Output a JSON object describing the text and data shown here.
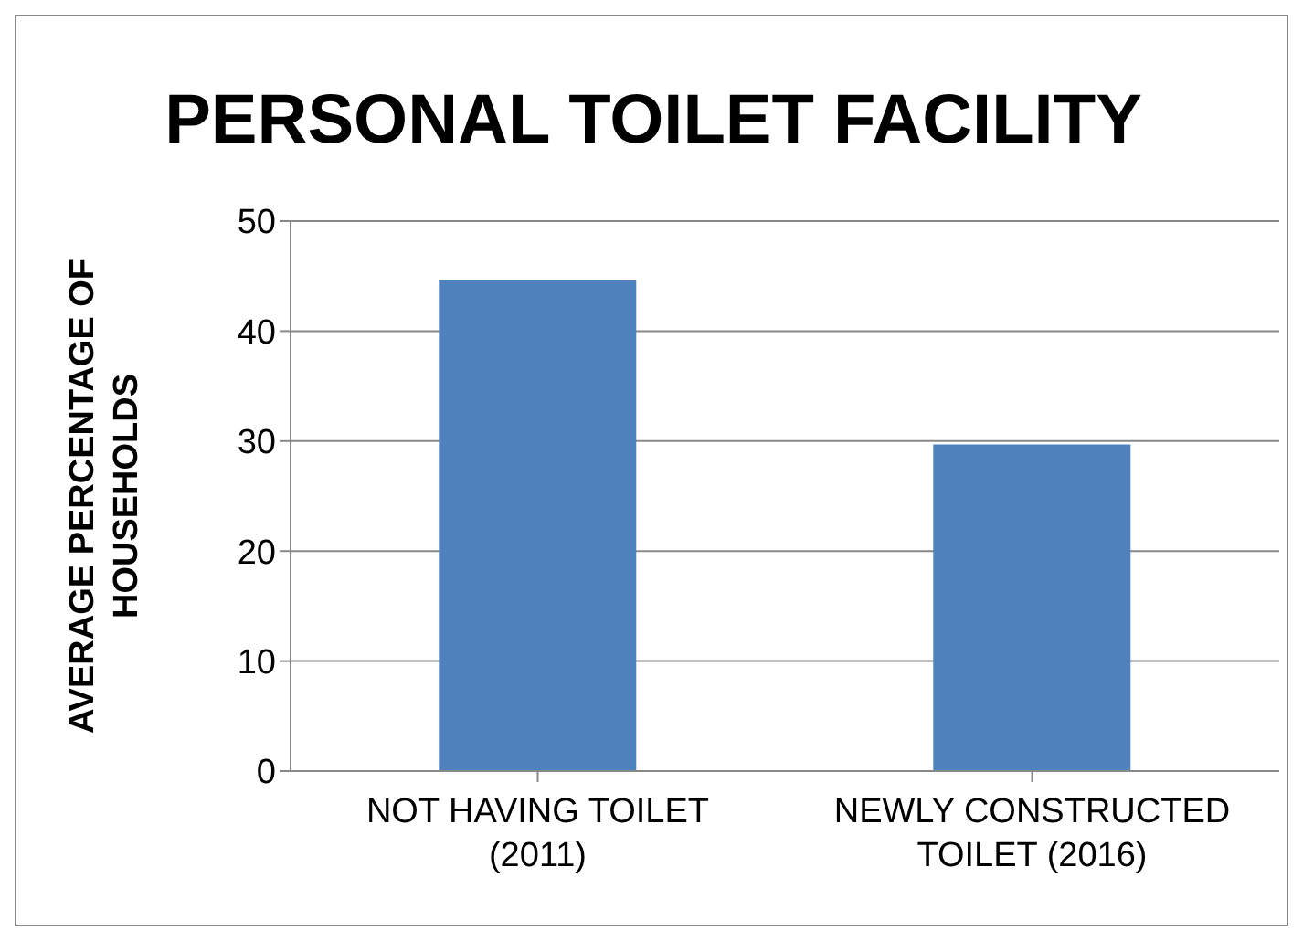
{
  "chart_data": {
    "type": "bar",
    "title": "PERSONAL TOILET FACILITY",
    "ylabel": "AVERAGE PERCENTAGE OF HOUSEHOLDS",
    "categories": [
      "NOT HAVING TOILET (2011)",
      "NEWLY CONSTRUCTED TOILET (2016)"
    ],
    "values": [
      44.6,
      29.7
    ],
    "color": "#4f81bd",
    "ylim": [
      0,
      50
    ],
    "yticks": [
      0,
      10,
      20,
      30,
      40,
      50
    ],
    "grid": "y"
  }
}
